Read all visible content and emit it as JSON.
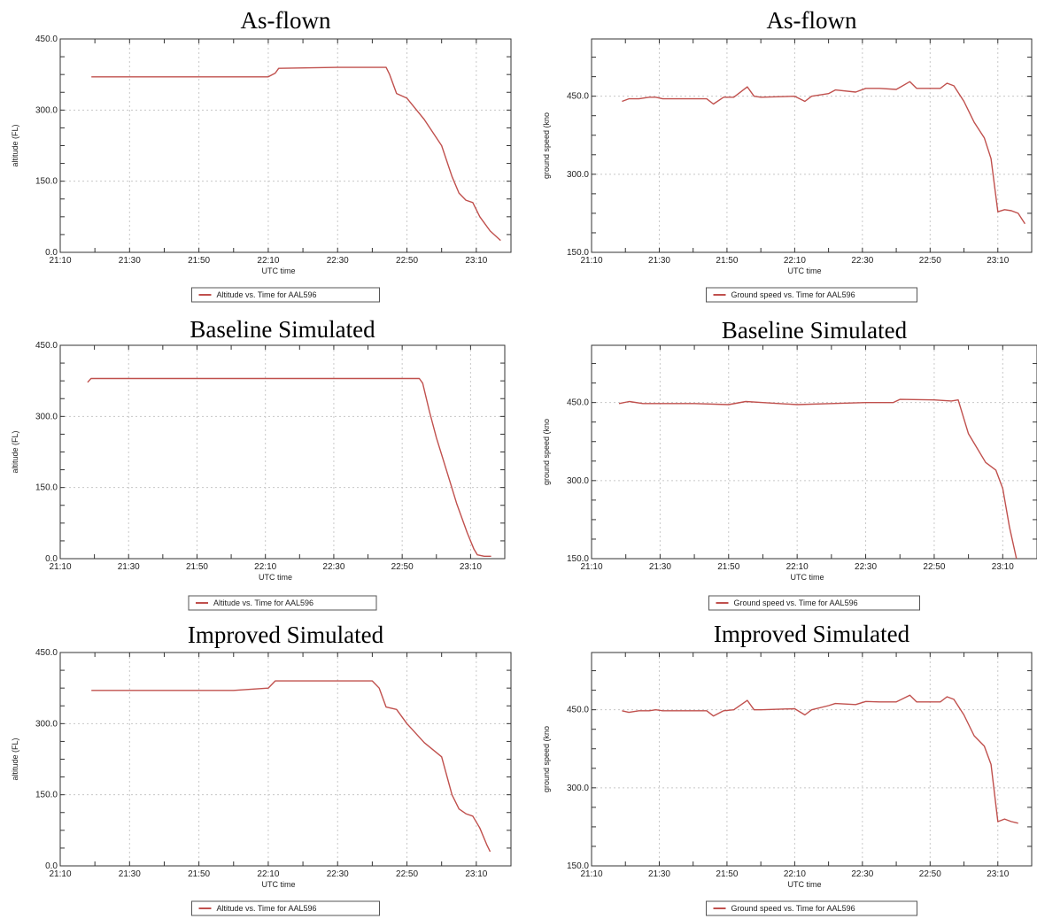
{
  "chart_data": [
    {
      "type": "line",
      "title": "As-flown",
      "xlabel": "UTC time",
      "ylabel": "altitude (FL)",
      "xlim": [
        "21:10",
        "23:20"
      ],
      "ylim": [
        0,
        450
      ],
      "x_ticks": [
        "21:10",
        "21:30",
        "21:50",
        "22:10",
        "22:30",
        "22:50",
        "23:10"
      ],
      "y_ticks": [
        "0.0",
        "150.0",
        "300.0",
        "450.0"
      ],
      "grid": true,
      "legend_position": "below",
      "series": [
        {
          "name": "Altitude vs. Time for AAL596",
          "color": "#c0504d",
          "x": [
            "21:19",
            "21:40",
            "22:00",
            "22:10",
            "22:12",
            "22:13",
            "22:30",
            "22:44",
            "22:45",
            "22:47",
            "22:50",
            "22:55",
            "23:00",
            "23:03",
            "23:05",
            "23:07",
            "23:09",
            "23:11",
            "23:14",
            "23:17"
          ],
          "y": [
            370,
            370,
            370,
            370,
            378,
            388,
            390,
            390,
            375,
            335,
            325,
            280,
            225,
            160,
            125,
            110,
            105,
            75,
            45,
            25
          ]
        }
      ]
    },
    {
      "type": "line",
      "title": "As-flown",
      "xlabel": "UTC time",
      "ylabel": "ground speed (kno",
      "xlim": [
        "21:10",
        "23:20"
      ],
      "ylim": [
        150,
        560
      ],
      "x_ticks": [
        "21:10",
        "21:30",
        "21:50",
        "22:10",
        "22:30",
        "22:50",
        "23:10"
      ],
      "y_ticks": [
        "150.0",
        "300.0",
        "450.0"
      ],
      "grid": true,
      "legend_position": "below",
      "series": [
        {
          "name": "Ground speed vs. Time for AAL596",
          "color": "#c0504d",
          "x": [
            "21:19",
            "21:21",
            "21:24",
            "21:27",
            "21:29",
            "21:31",
            "21:44",
            "21:46",
            "21:49",
            "21:52",
            "21:56",
            "21:58",
            "22:00",
            "22:10",
            "22:13",
            "22:15",
            "22:20",
            "22:22",
            "22:28",
            "22:31",
            "22:35",
            "22:40",
            "22:44",
            "22:46",
            "22:53",
            "22:55",
            "22:57",
            "23:00",
            "23:03",
            "23:06",
            "23:08",
            "23:10",
            "23:12",
            "23:14",
            "23:16",
            "23:18"
          ],
          "y": [
            440,
            445,
            445,
            448,
            448,
            445,
            445,
            435,
            448,
            448,
            468,
            450,
            448,
            450,
            440,
            450,
            455,
            462,
            458,
            465,
            465,
            463,
            478,
            465,
            465,
            475,
            470,
            440,
            400,
            370,
            330,
            228,
            232,
            230,
            225,
            205
          ]
        }
      ]
    },
    {
      "type": "line",
      "title": "Baseline Simulated",
      "xlabel": "UTC time",
      "ylabel": "altitude (FL)",
      "xlim": [
        "21:10",
        "23:20"
      ],
      "ylim": [
        0,
        450
      ],
      "x_ticks": [
        "21:10",
        "21:30",
        "21:50",
        "22:10",
        "22:30",
        "22:50",
        "23:10"
      ],
      "y_ticks": [
        "0.0",
        "150.0",
        "300.0",
        "450.0"
      ],
      "grid": true,
      "legend_position": "below",
      "series": [
        {
          "name": "Altitude vs. Time for AAL596",
          "color": "#c0504d",
          "x": [
            "21:18",
            "21:19",
            "21:30",
            "22:00",
            "22:30",
            "22:55",
            "22:56",
            "22:58",
            "23:00",
            "23:03",
            "23:06",
            "23:09",
            "23:11",
            "23:12",
            "23:14",
            "23:16"
          ],
          "y": [
            372,
            380,
            380,
            380,
            380,
            380,
            370,
            310,
            255,
            185,
            115,
            55,
            20,
            8,
            5,
            5
          ]
        }
      ]
    },
    {
      "type": "line",
      "title": "Baseline Simulated",
      "xlabel": "UTC time",
      "ylabel": "ground speed (kno",
      "xlim": [
        "21:10",
        "23:20"
      ],
      "ylim": [
        150,
        560
      ],
      "x_ticks": [
        "21:10",
        "21:30",
        "21:50",
        "22:10",
        "22:30",
        "22:50",
        "23:10"
      ],
      "y_ticks": [
        "150.0",
        "300.0",
        "450.0"
      ],
      "grid": true,
      "legend_position": "below",
      "series": [
        {
          "name": "Ground speed vs. Time for AAL596",
          "color": "#c0504d",
          "x": [
            "21:18",
            "21:21",
            "21:25",
            "21:40",
            "21:50",
            "21:55",
            "22:00",
            "22:10",
            "22:20",
            "22:30",
            "22:38",
            "22:40",
            "22:50",
            "22:55",
            "22:57",
            "23:00",
            "23:05",
            "23:08",
            "23:10",
            "23:12",
            "23:14"
          ],
          "y": [
            448,
            452,
            448,
            448,
            446,
            452,
            450,
            446,
            448,
            450,
            450,
            456,
            455,
            453,
            455,
            390,
            335,
            320,
            285,
            210,
            150
          ]
        }
      ]
    },
    {
      "type": "line",
      "title": "Improved Simulated",
      "xlabel": "UTC time",
      "ylabel": "altitude (FL)",
      "xlim": [
        "21:10",
        "23:20"
      ],
      "ylim": [
        0,
        450
      ],
      "x_ticks": [
        "21:10",
        "21:30",
        "21:50",
        "22:10",
        "22:30",
        "22:50",
        "23:10"
      ],
      "y_ticks": [
        "0.0",
        "150.0",
        "300.0",
        "450.0"
      ],
      "grid": true,
      "legend_position": "below",
      "series": [
        {
          "name": "Altitude vs. Time for AAL596",
          "color": "#c0504d",
          "x": [
            "21:19",
            "21:40",
            "22:00",
            "22:10",
            "22:12",
            "22:30",
            "22:40",
            "22:42",
            "22:44",
            "22:47",
            "22:50",
            "22:55",
            "23:00",
            "23:03",
            "23:05",
            "23:07",
            "23:09",
            "23:11",
            "23:13",
            "23:14"
          ],
          "y": [
            370,
            370,
            370,
            375,
            390,
            390,
            390,
            375,
            335,
            330,
            300,
            260,
            230,
            150,
            120,
            110,
            105,
            80,
            45,
            30
          ]
        }
      ]
    },
    {
      "type": "line",
      "title": "Improved Simulated",
      "xlabel": "UTC time",
      "ylabel": "ground speed (kno",
      "xlim": [
        "21:10",
        "23:20"
      ],
      "ylim": [
        150,
        560
      ],
      "x_ticks": [
        "21:10",
        "21:30",
        "21:50",
        "22:10",
        "22:30",
        "22:50",
        "23:10"
      ],
      "y_ticks": [
        "150.0",
        "300.0",
        "450.0"
      ],
      "grid": true,
      "legend_position": "below",
      "series": [
        {
          "name": "Ground speed vs. Time for AAL596",
          "color": "#c0504d",
          "x": [
            "21:19",
            "21:21",
            "21:24",
            "21:27",
            "21:29",
            "21:31",
            "21:44",
            "21:46",
            "21:49",
            "21:52",
            "21:56",
            "21:58",
            "22:00",
            "22:10",
            "22:13",
            "22:15",
            "22:20",
            "22:22",
            "22:28",
            "22:31",
            "22:35",
            "22:40",
            "22:44",
            "22:46",
            "22:53",
            "22:55",
            "22:57",
            "23:00",
            "23:03",
            "23:06",
            "23:08",
            "23:10",
            "23:12",
            "23:14",
            "23:16"
          ],
          "y": [
            448,
            445,
            448,
            448,
            450,
            448,
            448,
            438,
            448,
            450,
            468,
            450,
            450,
            452,
            440,
            450,
            458,
            462,
            460,
            466,
            465,
            465,
            478,
            465,
            465,
            475,
            470,
            440,
            400,
            380,
            345,
            235,
            240,
            235,
            232
          ]
        }
      ]
    }
  ]
}
